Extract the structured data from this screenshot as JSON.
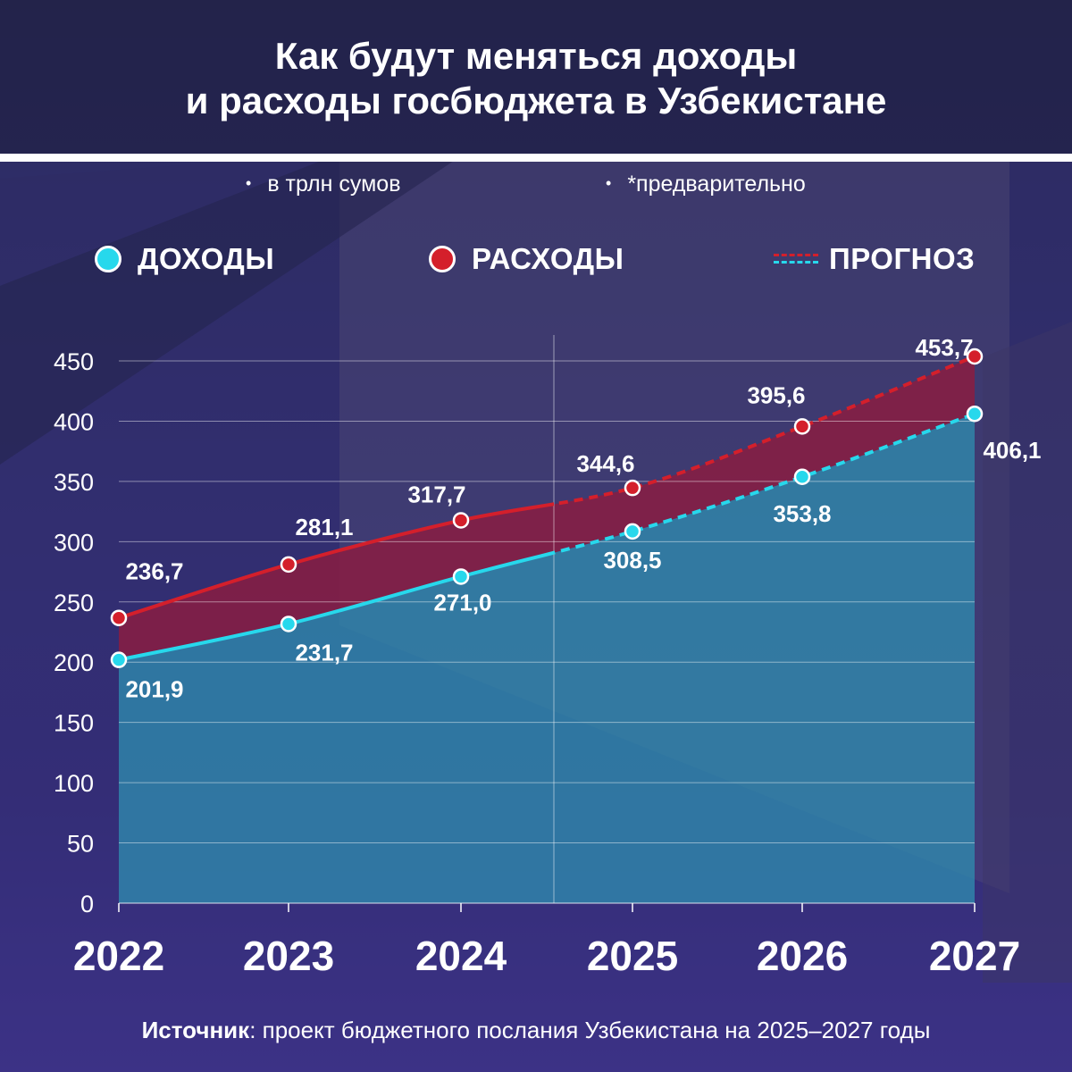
{
  "header": {
    "title_line1": "Как будут меняться доходы",
    "title_line2": "и расходы госбюджета в Узбекистане"
  },
  "notes": {
    "unit": "в трлн сумов",
    "preliminary": "*предварительно"
  },
  "legend": {
    "income": "ДОХОДЫ",
    "expenses": "РАСХОДЫ",
    "forecast": "ПРОГНОЗ"
  },
  "colors": {
    "income": "#27d8ec",
    "expenses": "#d41f2b",
    "income_fill": "#2f8fb0",
    "expenses_fill": "#8e1b3f",
    "forecast_income": "#27d8ec",
    "forecast_expenses": "#d41f2b"
  },
  "chart_data": {
    "type": "area",
    "title": "",
    "xlabel": "",
    "ylabel": "",
    "categories": [
      "2022",
      "2023",
      "2024",
      "2025",
      "2026",
      "2027"
    ],
    "series": [
      {
        "name": "ДОХОДЫ",
        "values": [
          201.9,
          231.7,
          271.0,
          308.5,
          353.8,
          406.1
        ],
        "labels": [
          "201,9",
          "231,7",
          "271,0",
          "308,5",
          "353,8",
          "406,1"
        ]
      },
      {
        "name": "РАСХОДЫ",
        "values": [
          236.7,
          281.1,
          317.7,
          344.6,
          395.6,
          453.7
        ],
        "labels": [
          "236,7",
          "281,1",
          "317,7",
          "344,6",
          "395,6",
          "453,7"
        ]
      }
    ],
    "forecast_from": "2025",
    "forecast_label": "ПРОГНОЗ",
    "ylim": [
      0,
      450
    ],
    "yticks": [
      0,
      50,
      100,
      150,
      200,
      250,
      300,
      350,
      400,
      450
    ],
    "grid": true,
    "legend_position": "top"
  },
  "source": {
    "prefix": "Источник",
    "text": ": проект бюджетного послания Узбекистана на 2025–2027 годы"
  }
}
